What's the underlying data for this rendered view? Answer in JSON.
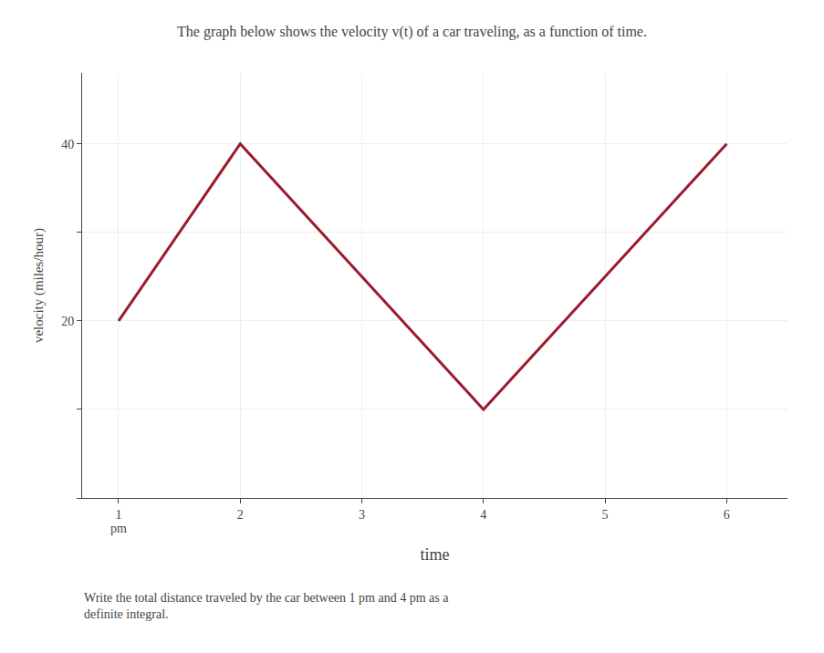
{
  "chart_data": {
    "type": "line",
    "title": "The graph below shows the velocity v(t) of a car traveling, as a function of time.",
    "subtitle": "Write the total distance traveled by the car between 1 pm and 4 pm as a\ndefinite integral.",
    "x_label": "time",
    "y_label": "velocity (miles/hour)",
    "x": [
      1,
      2,
      4,
      6
    ],
    "values": [
      20,
      40,
      10,
      40
    ],
    "color": "#9b1c2e",
    "xlim": [
      0.7,
      6.5
    ],
    "ylim": [
      0,
      48
    ],
    "xticks": [
      1,
      2,
      3,
      4,
      5,
      6
    ],
    "yticks": [
      {
        "value": 0,
        "label": null
      },
      {
        "value": 10,
        "label": null
      },
      20,
      {
        "value": 30,
        "label": null
      },
      40
    ],
    "annotations": [
      {
        "text": "pm",
        "x": 1
      }
    ],
    "grid": true
  }
}
